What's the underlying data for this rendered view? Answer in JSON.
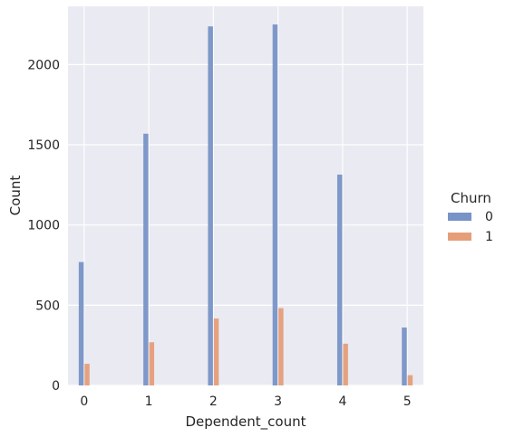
{
  "chart_data": {
    "type": "bar",
    "categories": [
      "0",
      "1",
      "2",
      "3",
      "4",
      "5"
    ],
    "x": [
      0,
      1,
      2,
      3,
      4,
      5
    ],
    "series": [
      {
        "name": "0",
        "values": [
          769,
          1569,
          2238,
          2250,
          1314,
          361
        ],
        "color": "#7893c6"
      },
      {
        "name": "1",
        "values": [
          135,
          269,
          417,
          482,
          260,
          64
        ],
        "color": "#e59e79"
      }
    ],
    "title": "",
    "xlabel": "Dependent_count",
    "ylabel": "Count",
    "xlim": [
      -0.25,
      5.25
    ],
    "ylim": [
      0,
      2363
    ],
    "yticks": [
      0,
      500,
      1000,
      1500,
      2000
    ],
    "xticks": [
      0,
      1,
      2,
      3,
      4,
      5
    ],
    "grid": true,
    "background": "#eaeaf2",
    "legend": {
      "title": "Churn",
      "placement": "right",
      "entries": [
        "0",
        "1"
      ]
    }
  }
}
